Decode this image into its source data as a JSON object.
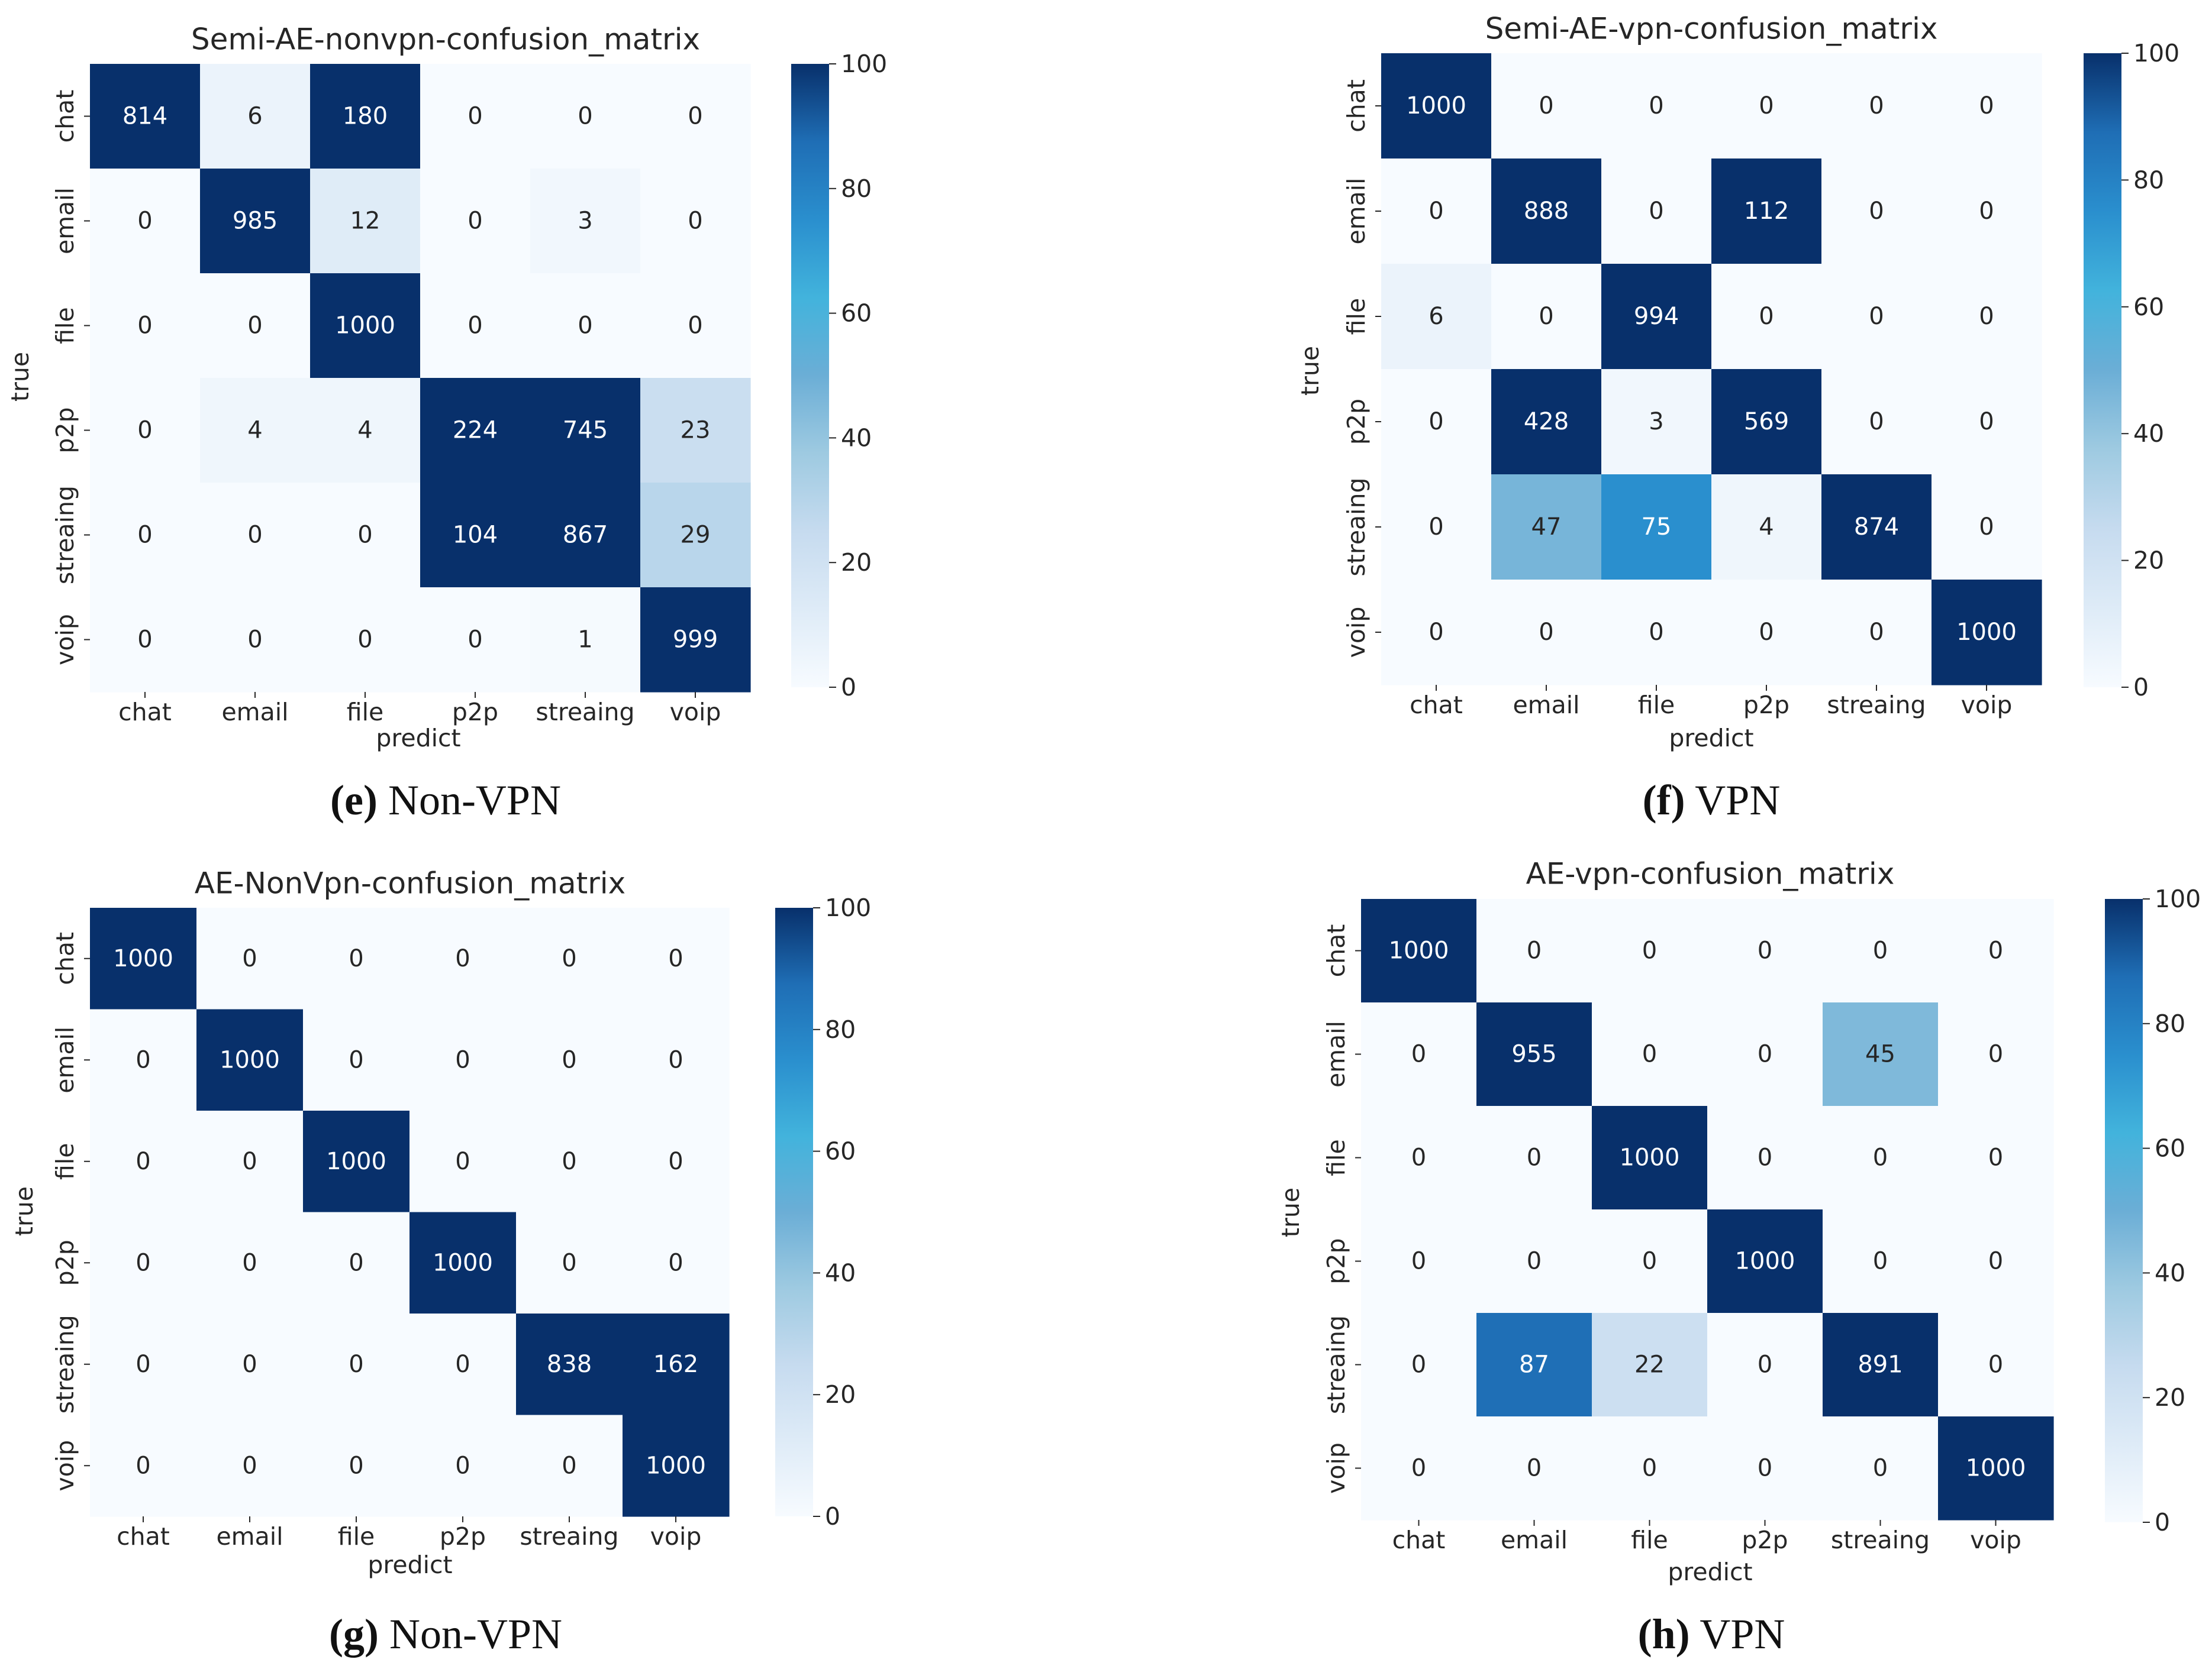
{
  "colors": {
    "cmap": [
      "#f7fbff",
      "#deebf7",
      "#c6dbef",
      "#9ecae1",
      "#6baed6",
      "#42b3dc",
      "#2a8fce",
      "#1f6eb5",
      "#08306b"
    ],
    "text_dark": "#262626",
    "text_light": "#ffffff"
  },
  "chart_data": [
    {
      "type": "heatmap",
      "title": "Semi-AE-nonvpn-confusion_matrix",
      "xlabel": "predict",
      "ylabel": "true",
      "x_categories": [
        "chat",
        "email",
        "file",
        "p2p",
        "streaing",
        "voip"
      ],
      "y_categories": [
        "chat",
        "email",
        "file",
        "p2p",
        "streaing",
        "voip"
      ],
      "values": [
        [
          814,
          6,
          180,
          0,
          0,
          0
        ],
        [
          0,
          985,
          12,
          0,
          3,
          0
        ],
        [
          0,
          0,
          1000,
          0,
          0,
          0
        ],
        [
          0,
          4,
          4,
          224,
          745,
          23
        ],
        [
          0,
          0,
          0,
          104,
          867,
          29
        ],
        [
          0,
          0,
          0,
          0,
          1,
          999
        ]
      ],
      "colorbar": {
        "min": 0,
        "max": 100,
        "ticks": [
          0,
          20,
          40,
          60,
          80,
          100
        ]
      },
      "caption": {
        "letter": "(e)",
        "text": " Non-VPN"
      }
    },
    {
      "type": "heatmap",
      "title": "Semi-AE-vpn-confusion_matrix",
      "xlabel": "predict",
      "ylabel": "true",
      "x_categories": [
        "chat",
        "email",
        "file",
        "p2p",
        "streaing",
        "voip"
      ],
      "y_categories": [
        "chat",
        "email",
        "file",
        "p2p",
        "streaing",
        "voip"
      ],
      "values": [
        [
          1000,
          0,
          0,
          0,
          0,
          0
        ],
        [
          0,
          888,
          0,
          112,
          0,
          0
        ],
        [
          6,
          0,
          994,
          0,
          0,
          0
        ],
        [
          0,
          428,
          3,
          569,
          0,
          0
        ],
        [
          0,
          47,
          75,
          4,
          874,
          0
        ],
        [
          0,
          0,
          0,
          0,
          0,
          1000
        ]
      ],
      "colorbar": {
        "min": 0,
        "max": 100,
        "ticks": [
          0,
          20,
          40,
          60,
          80,
          100
        ]
      },
      "caption": {
        "letter": "(f)",
        "text": " VPN"
      }
    },
    {
      "type": "heatmap",
      "title": "AE-NonVpn-confusion_matrix",
      "xlabel": "predict",
      "ylabel": "true",
      "x_categories": [
        "chat",
        "email",
        "file",
        "p2p",
        "streaing",
        "voip"
      ],
      "y_categories": [
        "chat",
        "email",
        "file",
        "p2p",
        "streaing",
        "voip"
      ],
      "values": [
        [
          1000,
          0,
          0,
          0,
          0,
          0
        ],
        [
          0,
          1000,
          0,
          0,
          0,
          0
        ],
        [
          0,
          0,
          1000,
          0,
          0,
          0
        ],
        [
          0,
          0,
          0,
          1000,
          0,
          0
        ],
        [
          0,
          0,
          0,
          0,
          838,
          162
        ],
        [
          0,
          0,
          0,
          0,
          0,
          1000
        ]
      ],
      "colorbar": {
        "min": 0,
        "max": 100,
        "ticks": [
          0,
          20,
          40,
          60,
          80,
          100
        ]
      },
      "caption": {
        "letter": "(g)",
        "text": " Non-VPN"
      }
    },
    {
      "type": "heatmap",
      "title": "AE-vpn-confusion_matrix",
      "xlabel": "predict",
      "ylabel": "true",
      "x_categories": [
        "chat",
        "email",
        "file",
        "p2p",
        "streaing",
        "voip"
      ],
      "y_categories": [
        "chat",
        "email",
        "file",
        "p2p",
        "streaing",
        "voip"
      ],
      "values": [
        [
          1000,
          0,
          0,
          0,
          0,
          0
        ],
        [
          0,
          955,
          0,
          0,
          45,
          0
        ],
        [
          0,
          0,
          1000,
          0,
          0,
          0
        ],
        [
          0,
          0,
          0,
          1000,
          0,
          0
        ],
        [
          0,
          87,
          22,
          0,
          891,
          0
        ],
        [
          0,
          0,
          0,
          0,
          0,
          1000
        ]
      ],
      "colorbar": {
        "min": 0,
        "max": 100,
        "ticks": [
          0,
          20,
          40,
          60,
          80,
          100
        ]
      },
      "caption": {
        "letter": "(h)",
        "text": " VPN"
      }
    }
  ]
}
